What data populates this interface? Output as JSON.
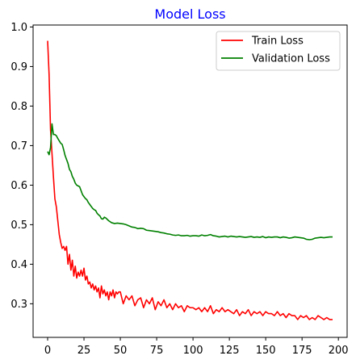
{
  "chart_data": {
    "type": "line",
    "title": "Model Loss",
    "title_color": "#0000ff",
    "xlabel": "",
    "ylabel": "",
    "xlim": [
      -10,
      206
    ],
    "ylim": [
      0.215,
      1.005
    ],
    "xticks": [
      0,
      25,
      50,
      75,
      100,
      125,
      150,
      175,
      200
    ],
    "yticks": [
      0.3,
      0.4,
      0.5,
      0.6,
      0.7,
      0.8,
      0.9,
      1.0
    ],
    "ytick_labels": [
      "0.3",
      "0.4",
      "0.5",
      "0.6",
      "0.7",
      "0.8",
      "0.9",
      "1.0"
    ],
    "grid": false,
    "legend_position": "top-right",
    "series": [
      {
        "name": "Train Loss",
        "color": "#ff0000",
        "x": [
          0,
          1,
          2,
          3,
          4,
          5,
          6,
          7,
          8,
          9,
          10,
          11,
          12,
          13,
          14,
          15,
          16,
          17,
          18,
          19,
          20,
          21,
          22,
          23,
          24,
          25,
          26,
          27,
          28,
          29,
          30,
          31,
          32,
          33,
          34,
          35,
          36,
          37,
          38,
          39,
          40,
          41,
          42,
          43,
          44,
          45,
          46,
          47,
          48,
          49,
          50,
          52,
          54,
          56,
          58,
          60,
          62,
          64,
          66,
          68,
          70,
          72,
          74,
          76,
          78,
          80,
          82,
          84,
          86,
          88,
          90,
          92,
          94,
          96,
          98,
          100,
          102,
          104,
          106,
          108,
          110,
          112,
          114,
          116,
          118,
          120,
          122,
          124,
          126,
          128,
          130,
          132,
          134,
          136,
          138,
          140,
          142,
          144,
          146,
          148,
          150,
          152,
          154,
          156,
          158,
          160,
          162,
          164,
          166,
          168,
          170,
          172,
          174,
          176,
          178,
          180,
          182,
          184,
          186,
          188,
          190,
          192,
          194,
          196
        ],
        "values": [
          0.965,
          0.88,
          0.74,
          0.68,
          0.62,
          0.565,
          0.545,
          0.51,
          0.475,
          0.455,
          0.44,
          0.445,
          0.435,
          0.445,
          0.4,
          0.425,
          0.385,
          0.41,
          0.37,
          0.395,
          0.365,
          0.38,
          0.37,
          0.385,
          0.37,
          0.39,
          0.36,
          0.37,
          0.35,
          0.355,
          0.34,
          0.35,
          0.335,
          0.345,
          0.33,
          0.34,
          0.315,
          0.345,
          0.325,
          0.335,
          0.32,
          0.33,
          0.31,
          0.33,
          0.32,
          0.335,
          0.315,
          0.33,
          0.325,
          0.33,
          0.33,
          0.3,
          0.32,
          0.31,
          0.32,
          0.295,
          0.31,
          0.315,
          0.29,
          0.31,
          0.3,
          0.315,
          0.285,
          0.305,
          0.295,
          0.31,
          0.29,
          0.3,
          0.285,
          0.3,
          0.29,
          0.295,
          0.28,
          0.295,
          0.29,
          0.29,
          0.285,
          0.29,
          0.28,
          0.29,
          0.28,
          0.295,
          0.275,
          0.285,
          0.28,
          0.29,
          0.28,
          0.285,
          0.28,
          0.275,
          0.285,
          0.27,
          0.28,
          0.275,
          0.285,
          0.27,
          0.28,
          0.275,
          0.28,
          0.27,
          0.28,
          0.275,
          0.275,
          0.27,
          0.28,
          0.27,
          0.275,
          0.265,
          0.275,
          0.27,
          0.27,
          0.26,
          0.27,
          0.265,
          0.27,
          0.26,
          0.265,
          0.26,
          0.27,
          0.265,
          0.26,
          0.265,
          0.26,
          0.26
        ]
      },
      {
        "name": "Validation Loss",
        "color": "#008000",
        "x": [
          0,
          1,
          2,
          3,
          4,
          5,
          6,
          7,
          8,
          9,
          10,
          11,
          12,
          13,
          14,
          15,
          16,
          17,
          18,
          19,
          20,
          21,
          22,
          23,
          24,
          25,
          26,
          27,
          28,
          29,
          30,
          31,
          32,
          33,
          34,
          35,
          36,
          37,
          38,
          39,
          40,
          42,
          44,
          46,
          48,
          50,
          52,
          54,
          56,
          58,
          60,
          62,
          64,
          66,
          68,
          70,
          72,
          74,
          76,
          78,
          80,
          82,
          84,
          86,
          88,
          90,
          92,
          94,
          96,
          98,
          100,
          102,
          104,
          106,
          108,
          110,
          112,
          114,
          116,
          118,
          120,
          122,
          124,
          126,
          128,
          130,
          132,
          134,
          136,
          138,
          140,
          142,
          144,
          146,
          148,
          150,
          152,
          154,
          156,
          158,
          160,
          162,
          164,
          166,
          168,
          170,
          172,
          174,
          176,
          178,
          180,
          182,
          184,
          186,
          188,
          190,
          192,
          194,
          196
        ],
        "values": [
          0.685,
          0.677,
          0.695,
          0.755,
          0.728,
          0.728,
          0.725,
          0.718,
          0.712,
          0.706,
          0.703,
          0.69,
          0.675,
          0.665,
          0.655,
          0.64,
          0.634,
          0.622,
          0.615,
          0.605,
          0.6,
          0.598,
          0.596,
          0.586,
          0.576,
          0.571,
          0.566,
          0.563,
          0.556,
          0.551,
          0.546,
          0.541,
          0.538,
          0.536,
          0.529,
          0.525,
          0.522,
          0.515,
          0.514,
          0.519,
          0.517,
          0.51,
          0.505,
          0.503,
          0.504,
          0.503,
          0.502,
          0.5,
          0.497,
          0.494,
          0.493,
          0.49,
          0.491,
          0.49,
          0.486,
          0.485,
          0.484,
          0.483,
          0.482,
          0.48,
          0.479,
          0.477,
          0.476,
          0.474,
          0.473,
          0.474,
          0.472,
          0.472,
          0.473,
          0.471,
          0.472,
          0.472,
          0.471,
          0.474,
          0.472,
          0.473,
          0.475,
          0.472,
          0.471,
          0.469,
          0.47,
          0.471,
          0.469,
          0.471,
          0.47,
          0.469,
          0.47,
          0.469,
          0.468,
          0.469,
          0.47,
          0.468,
          0.469,
          0.468,
          0.47,
          0.467,
          0.469,
          0.468,
          0.469,
          0.469,
          0.467,
          0.469,
          0.468,
          0.466,
          0.467,
          0.469,
          0.468,
          0.467,
          0.466,
          0.463,
          0.462,
          0.463,
          0.466,
          0.467,
          0.468,
          0.467,
          0.468,
          0.469,
          0.469
        ]
      }
    ]
  }
}
